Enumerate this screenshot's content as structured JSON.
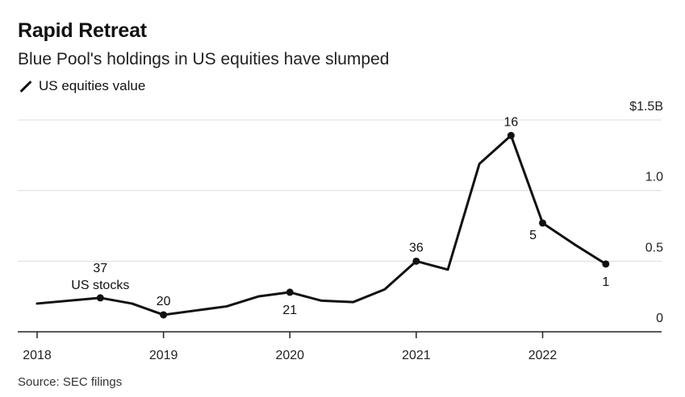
{
  "header": {
    "title": "Rapid Retreat",
    "subtitle": "Blue Pool's holdings in US equities have slumped",
    "legend_label": "US equities value"
  },
  "footer": {
    "source": "Source: SEC filings"
  },
  "chart_data": {
    "type": "line",
    "title": "Rapid Retreat",
    "subtitle": "Blue Pool's holdings in US equities have slumped",
    "xlabel": "",
    "ylabel": "",
    "xlim": [
      2018,
      2022.75
    ],
    "ylim": [
      0,
      1.5
    ],
    "x_ticks": [
      {
        "value": 2018,
        "label": "2018"
      },
      {
        "value": 2019,
        "label": "2019"
      },
      {
        "value": 2020,
        "label": "2020"
      },
      {
        "value": 2021,
        "label": "2021"
      },
      {
        "value": 2022,
        "label": "2022"
      }
    ],
    "y_ticks": [
      {
        "value": 0,
        "label": "0"
      },
      {
        "value": 0.5,
        "label": "0.5"
      },
      {
        "value": 1.0,
        "label": "1.0"
      },
      {
        "value": 1.5,
        "label": "$1.5B"
      }
    ],
    "grid": true,
    "legend_position": "top-left",
    "color": "#111111",
    "series": [
      {
        "name": "US equities value",
        "x": [
          2018.0,
          2018.5,
          2018.75,
          2019.0,
          2019.25,
          2019.5,
          2019.75,
          2020.0,
          2020.25,
          2020.5,
          2020.75,
          2021.0,
          2021.25,
          2021.5,
          2021.75,
          2022.0,
          2022.25,
          2022.5
        ],
        "values": [
          0.2,
          0.24,
          0.2,
          0.12,
          0.15,
          0.18,
          0.25,
          0.28,
          0.22,
          0.21,
          0.3,
          0.5,
          0.44,
          1.19,
          1.39,
          0.77,
          0.62,
          0.48
        ]
      }
    ],
    "annotations": [
      {
        "x": 2018.5,
        "y": 0.24,
        "text": "37",
        "position": "above"
      },
      {
        "x": 2018.5,
        "y": 0.24,
        "text": "US stocks",
        "position": "above"
      },
      {
        "x": 2019.0,
        "y": 0.12,
        "text": "20",
        "position": "above"
      },
      {
        "x": 2020.0,
        "y": 0.28,
        "text": "21",
        "position": "below"
      },
      {
        "x": 2021.0,
        "y": 0.5,
        "text": "36",
        "position": "above"
      },
      {
        "x": 2021.75,
        "y": 1.39,
        "text": "16",
        "position": "above"
      },
      {
        "x": 2022.0,
        "y": 0.77,
        "text": "5",
        "position": "below-left"
      },
      {
        "x": 2022.5,
        "y": 0.48,
        "text": "1",
        "position": "below"
      }
    ]
  }
}
